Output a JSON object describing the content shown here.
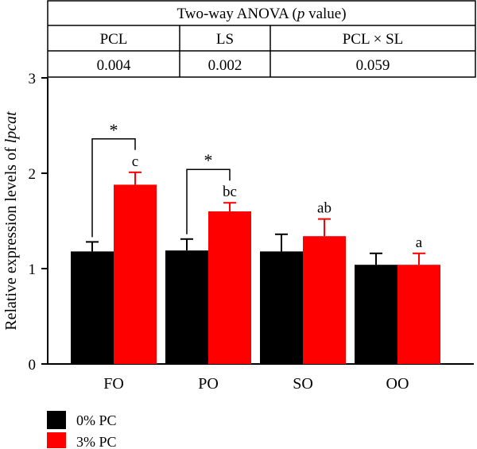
{
  "anova_table": {
    "title_prefix": "Two-way ANOVA (",
    "title_italic": "p",
    "title_suffix": " value)",
    "headers": [
      "PCL",
      "LS",
      "PCL × SL"
    ],
    "values": [
      "0.004",
      "0.002",
      "0.059"
    ]
  },
  "chart_data": {
    "type": "bar",
    "categories": [
      "FO",
      "PO",
      "SO",
      "OO"
    ],
    "series": [
      {
        "name": "0% PC",
        "color": "#000000",
        "values": [
          1.18,
          1.19,
          1.18,
          1.04
        ],
        "errors": [
          0.1,
          0.12,
          0.18,
          0.12
        ]
      },
      {
        "name": "3% PC",
        "color": "#ff0000",
        "values": [
          1.88,
          1.6,
          1.34,
          1.04
        ],
        "errors": [
          0.13,
          0.09,
          0.18,
          0.12
        ]
      }
    ],
    "ylabel_prefix": "Relative expression levels of ",
    "ylabel_italic": "lpcat",
    "xlabel": "",
    "ylim": [
      0,
      3
    ],
    "yticks": [
      0,
      1,
      2,
      3
    ],
    "significance_letters": [
      "c",
      "bc",
      "ab",
      "a"
    ],
    "pairwise_markers": [
      {
        "category": "FO",
        "symbol": "*"
      },
      {
        "category": "PO",
        "symbol": "*"
      }
    ],
    "legend_position": "bottom-left"
  }
}
